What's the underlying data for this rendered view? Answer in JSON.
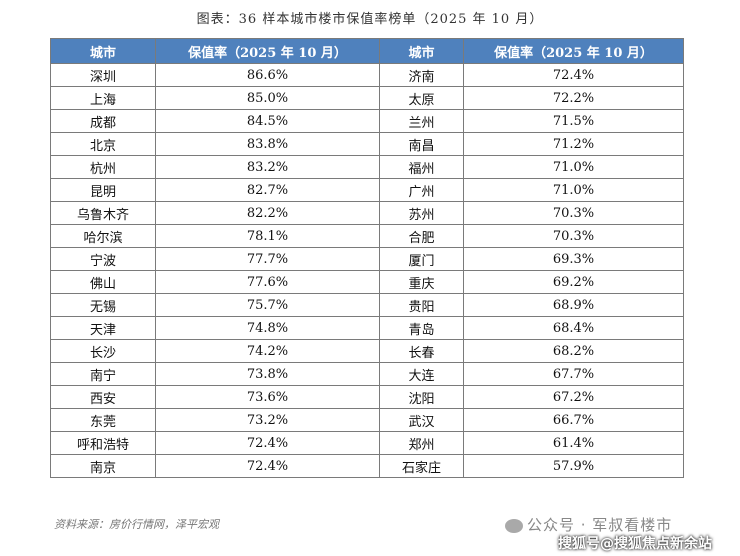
{
  "title": "图表：36 样本城市楼市保值率榜单（2025 年 10 月）",
  "headers": [
    "城市",
    "保值率（2025 年 10 月）",
    "城市",
    "保值率（2025 年 10 月）"
  ],
  "rows": [
    [
      "深圳",
      "86.6%",
      "济南",
      "72.4%"
    ],
    [
      "上海",
      "85.0%",
      "太原",
      "72.2%"
    ],
    [
      "成都",
      "84.5%",
      "兰州",
      "71.5%"
    ],
    [
      "北京",
      "83.8%",
      "南昌",
      "71.2%"
    ],
    [
      "杭州",
      "83.2%",
      "福州",
      "71.0%"
    ],
    [
      "昆明",
      "82.7%",
      "广州",
      "71.0%"
    ],
    [
      "乌鲁木齐",
      "82.2%",
      "苏州",
      "70.3%"
    ],
    [
      "哈尔滨",
      "78.1%",
      "合肥",
      "70.3%"
    ],
    [
      "宁波",
      "77.7%",
      "厦门",
      "69.3%"
    ],
    [
      "佛山",
      "77.6%",
      "重庆",
      "69.2%"
    ],
    [
      "无锡",
      "75.7%",
      "贵阳",
      "68.9%"
    ],
    [
      "天津",
      "74.8%",
      "青岛",
      "68.4%"
    ],
    [
      "长沙",
      "74.2%",
      "长春",
      "68.2%"
    ],
    [
      "南宁",
      "73.8%",
      "大连",
      "67.7%"
    ],
    [
      "西安",
      "73.6%",
      "沈阳",
      "67.2%"
    ],
    [
      "东莞",
      "73.2%",
      "武汉",
      "66.7%"
    ],
    [
      "呼和浩特",
      "72.4%",
      "郑州",
      "61.4%"
    ],
    [
      "南京",
      "72.4%",
      "石家庄",
      "57.9%"
    ]
  ],
  "source": "资料来源：房价行情网，泽平宏观",
  "watermark_top": "公众号 · 军叔看楼市",
  "watermark_bottom": "搜狐号@搜狐焦点新余站",
  "colors": {
    "header_bg": "#4f81bd",
    "border": "#7a7a7a"
  }
}
